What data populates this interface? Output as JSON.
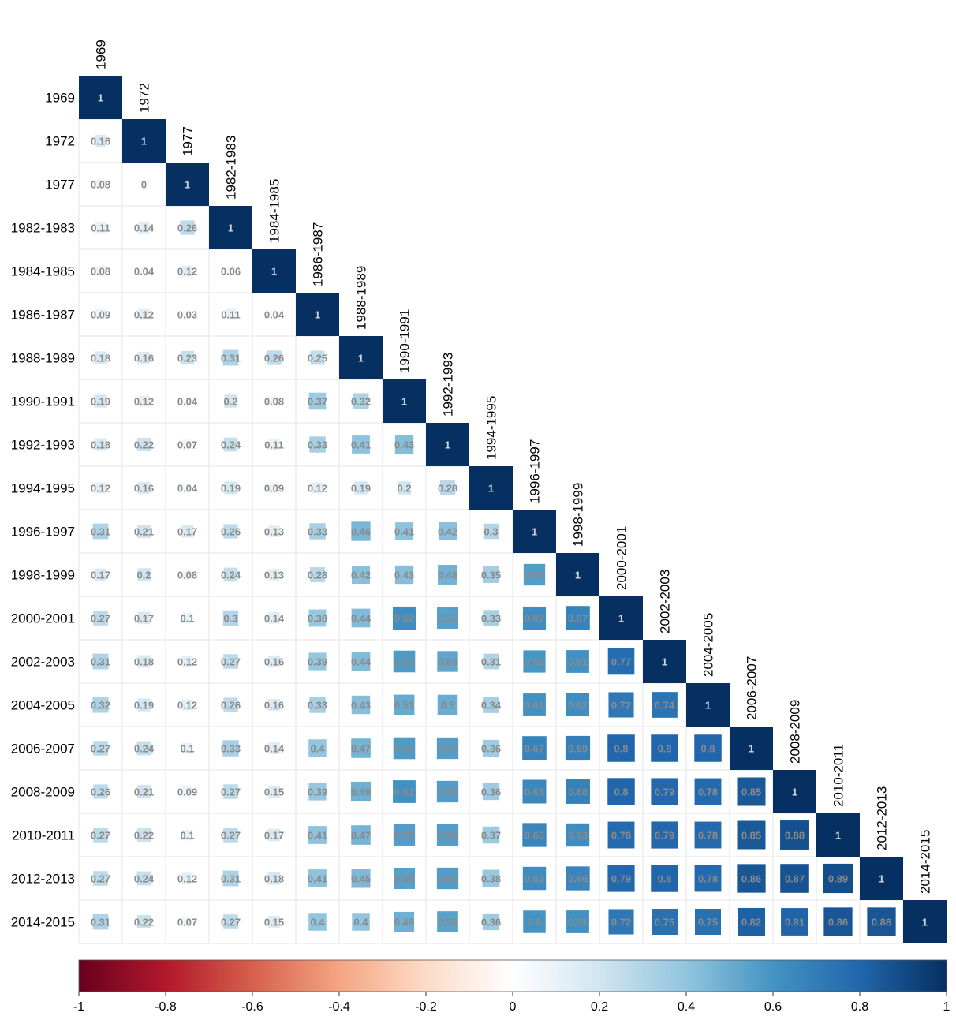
{
  "chart_data": {
    "type": "heatmap",
    "variant": "lower-triangular correlation matrix",
    "labels": [
      "1969",
      "1972",
      "1977",
      "1982-1983",
      "1984-1985",
      "1986-1987",
      "1988-1989",
      "1990-1991",
      "1992-1993",
      "1994-1995",
      "1996-1997",
      "1998-1999",
      "2000-2001",
      "2002-2003",
      "2004-2005",
      "2006-2007",
      "2008-2009",
      "2010-2011",
      "2012-2013",
      "2014-2015"
    ],
    "matrix": [
      [
        1
      ],
      [
        0.16,
        1
      ],
      [
        0.08,
        0,
        1
      ],
      [
        0.11,
        0.14,
        0.26,
        1
      ],
      [
        0.08,
        0.04,
        0.12,
        0.06,
        1
      ],
      [
        0.09,
        0.12,
        0.03,
        0.11,
        0.04,
        1
      ],
      [
        0.18,
        0.16,
        0.23,
        0.31,
        0.26,
        0.25,
        1
      ],
      [
        0.19,
        0.12,
        0.04,
        0.2,
        0.08,
        0.37,
        0.32,
        1
      ],
      [
        0.18,
        0.22,
        0.07,
        0.24,
        0.11,
        0.33,
        0.41,
        0.43,
        1
      ],
      [
        0.12,
        0.16,
        0.04,
        0.19,
        0.09,
        0.12,
        0.19,
        0.2,
        0.28,
        1
      ],
      [
        0.31,
        0.21,
        0.17,
        0.26,
        0.13,
        0.33,
        0.46,
        0.41,
        0.42,
        0.3,
        1
      ],
      [
        0.17,
        0.2,
        0.08,
        0.24,
        0.13,
        0.28,
        0.42,
        0.43,
        0.48,
        0.35,
        0.56,
        1
      ],
      [
        0.27,
        0.17,
        0.1,
        0.3,
        0.14,
        0.38,
        0.44,
        0.62,
        0.55,
        0.33,
        0.62,
        0.67,
        1
      ],
      [
        0.31,
        0.18,
        0.12,
        0.27,
        0.16,
        0.39,
        0.44,
        0.57,
        0.53,
        0.31,
        0.59,
        0.61,
        0.77,
        1
      ],
      [
        0.32,
        0.19,
        0.12,
        0.26,
        0.16,
        0.33,
        0.43,
        0.51,
        0.5,
        0.34,
        0.61,
        0.62,
        0.72,
        0.74,
        1
      ],
      [
        0.27,
        0.24,
        0.1,
        0.33,
        0.14,
        0.4,
        0.47,
        0.57,
        0.56,
        0.36,
        0.67,
        0.69,
        0.8,
        0.8,
        0.8,
        1
      ],
      [
        0.26,
        0.21,
        0.09,
        0.27,
        0.15,
        0.39,
        0.49,
        0.61,
        0.56,
        0.36,
        0.65,
        0.68,
        0.8,
        0.79,
        0.78,
        0.85,
        1
      ],
      [
        0.27,
        0.22,
        0.1,
        0.27,
        0.17,
        0.41,
        0.47,
        0.56,
        0.56,
        0.37,
        0.66,
        0.63,
        0.78,
        0.79,
        0.78,
        0.85,
        0.88,
        1
      ],
      [
        0.27,
        0.24,
        0.12,
        0.31,
        0.18,
        0.41,
        0.45,
        0.55,
        0.56,
        0.38,
        0.63,
        0.66,
        0.79,
        0.8,
        0.78,
        0.86,
        0.87,
        0.89,
        1
      ],
      [
        0.31,
        0.22,
        0.07,
        0.27,
        0.15,
        0.4,
        0.4,
        0.49,
        0.54,
        0.36,
        0.6,
        0.61,
        0.72,
        0.75,
        0.75,
        0.82,
        0.81,
        0.86,
        0.86,
        1
      ]
    ],
    "color_scale": {
      "min": -1,
      "max": 1,
      "colors": [
        "#67001f",
        "#b2182b",
        "#d6604d",
        "#f4a582",
        "#fddbc7",
        "#ffffff",
        "#d1e5f0",
        "#92c5de",
        "#4393c3",
        "#2166ac",
        "#053061"
      ],
      "ticks": [
        "-1",
        "-0.8",
        "-0.6",
        "-0.4",
        "-0.2",
        "0",
        "0.2",
        "0.4",
        "0.6",
        "0.8",
        "1"
      ],
      "orientation": "horizontal",
      "placement": "bottom"
    },
    "title": "",
    "xlabel": "",
    "ylabel": "",
    "grid": true
  }
}
